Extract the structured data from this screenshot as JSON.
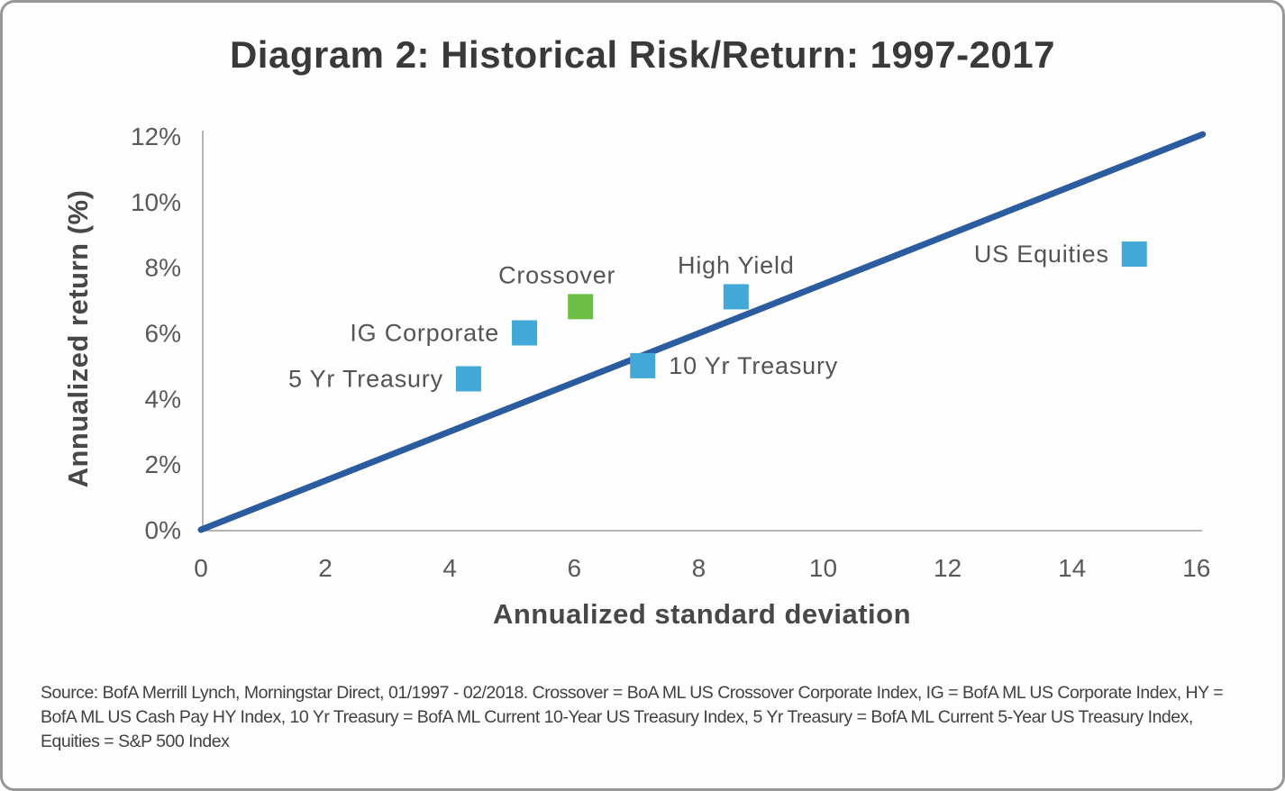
{
  "title": "Diagram 2: Historical Risk/Return: 1997-2017",
  "source_note": "Source: BofA Merrill Lynch, Morningstar Direct, 01/1997 - 02/2018. Crossover = BoA ML US Crossover Corporate Index, IG = BofA ML US Corporate Index, HY = BofA ML US Cash Pay HY Index, 10 Yr Treasury = BofA ML Current 10-Year US Treasury Index, 5 Yr Treasury = BofA ML Current 5-Year US Treasury Index, Equities = S&P 500 Index",
  "colors": {
    "point_blue": "#41A8D8",
    "point_green": "#6CBE44",
    "trend_line_blue": "#2C5CA0",
    "axis_gray": "#b5b5b5",
    "title_text": "#39393b",
    "label_text": "#545456",
    "source_text": "#414142",
    "card_border": "#979797"
  },
  "chart_data": {
    "type": "scatter",
    "title": "Diagram 2: Historical Risk/Return: 1997-2017",
    "xlabel": "Annualized standard deviation",
    "ylabel": "Annualized return (%)",
    "xlim": [
      0,
      16
    ],
    "ylim": [
      0,
      12
    ],
    "grid": false,
    "legend": "none",
    "x_ticks": [
      {
        "value": 0,
        "label": "0"
      },
      {
        "value": 2,
        "label": "2"
      },
      {
        "value": 4,
        "label": "4"
      },
      {
        "value": 6,
        "label": "6"
      },
      {
        "value": 8,
        "label": "8"
      },
      {
        "value": 10,
        "label": "10"
      },
      {
        "value": 12,
        "label": "12"
      },
      {
        "value": 14,
        "label": "14"
      },
      {
        "value": 16,
        "label": "16"
      }
    ],
    "y_ticks": [
      {
        "value": 0,
        "label": "0%"
      },
      {
        "value": 2,
        "label": "2%"
      },
      {
        "value": 4,
        "label": "4%"
      },
      {
        "value": 6,
        "label": "6%"
      },
      {
        "value": 8,
        "label": "8%"
      },
      {
        "value": 10,
        "label": "10%"
      },
      {
        "value": 12,
        "label": "12%"
      }
    ],
    "points": [
      {
        "name": "5 Yr Treasury",
        "x": 4.3,
        "y": 4.6,
        "color": "#41A8D8",
        "label_placement": "left"
      },
      {
        "name": "IG Corporate",
        "x": 5.2,
        "y": 6.0,
        "color": "#41A8D8",
        "label_placement": "left"
      },
      {
        "name": "Crossover",
        "x": 6.1,
        "y": 6.8,
        "color": "#6CBE44",
        "label_placement": "above",
        "label_dx": -26
      },
      {
        "name": "10 Yr Treasury",
        "x": 7.1,
        "y": 5.0,
        "color": "#41A8D8",
        "label_placement": "right"
      },
      {
        "name": "High Yield",
        "x": 8.6,
        "y": 7.1,
        "color": "#41A8D8",
        "label_placement": "above"
      },
      {
        "name": "US Equities",
        "x": 15.0,
        "y": 8.4,
        "color": "#41A8D8",
        "label_placement": "left"
      }
    ],
    "trend_line": {
      "from": [
        0,
        0
      ],
      "to": [
        16.1,
        12.05
      ],
      "color": "#2C5CA0",
      "width": 7
    }
  }
}
